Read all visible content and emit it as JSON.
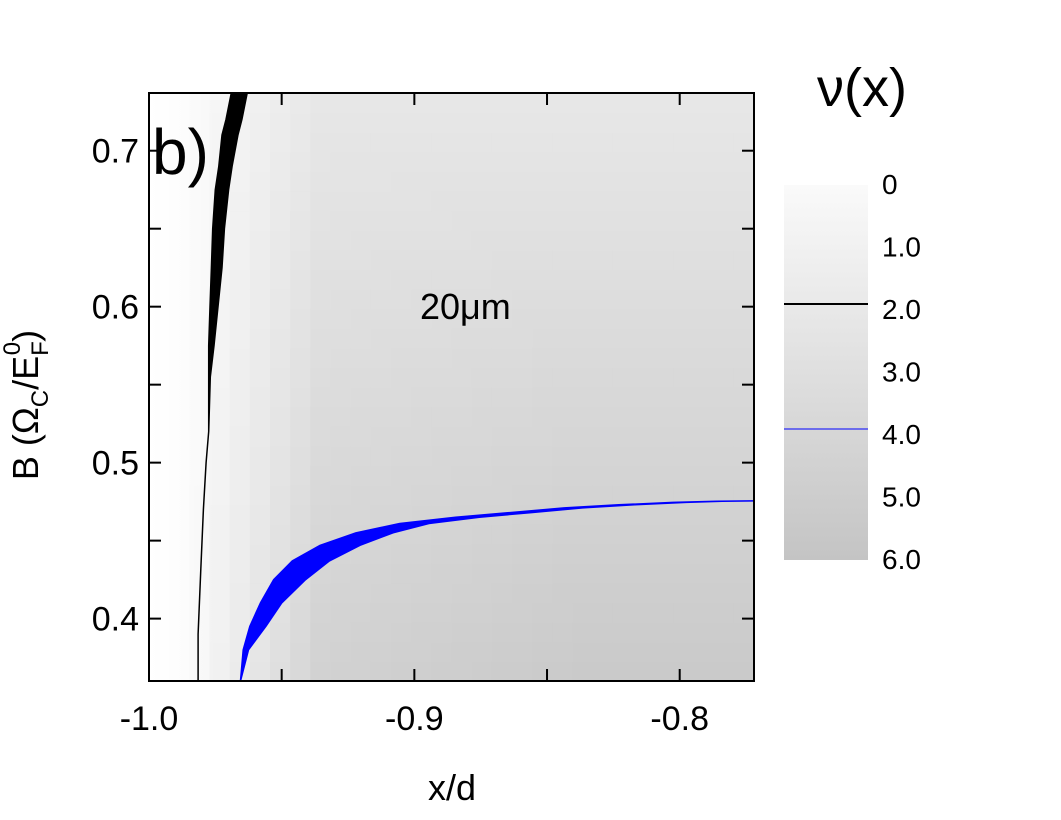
{
  "chart_data": {
    "type": "heatmap",
    "title": "",
    "panel_label": "b)",
    "annotation": "20μm",
    "xlabel": "x/d",
    "ylabel": {
      "prefix": "B (Ω",
      "sub1": "C",
      "middle": "/E",
      "sub2": "F",
      "sup2": "0",
      "suffix": ")"
    },
    "xlim": [
      -1.0,
      -0.772
    ],
    "ylim": [
      0.36,
      0.737
    ],
    "xticks": [
      {
        "value": -1.0,
        "label": "-1.0"
      },
      {
        "value": -0.95,
        "label": ""
      },
      {
        "value": -0.9,
        "label": "-0.9"
      },
      {
        "value": -0.85,
        "label": ""
      },
      {
        "value": -0.8,
        "label": "-0.8"
      }
    ],
    "yticks": [
      {
        "value": 0.4,
        "label": "0.4"
      },
      {
        "value": 0.45,
        "label": ""
      },
      {
        "value": 0.5,
        "label": "0.5"
      },
      {
        "value": 0.55,
        "label": ""
      },
      {
        "value": 0.6,
        "label": "0.6"
      },
      {
        "value": 0.65,
        "label": ""
      },
      {
        "value": 0.7,
        "label": "0.7"
      }
    ],
    "colorbar": {
      "title": "ν(x)",
      "range": [
        0,
        6
      ],
      "ticks": [
        "0",
        "1.0",
        "2.0",
        "3.0",
        "4.0",
        "5.0",
        "6.0"
      ],
      "low_color": "#fafafa",
      "high_color": "#c4c4c4",
      "contours": [
        {
          "level": 2.0,
          "color": "#000000"
        },
        {
          "level": 4.0,
          "color": "#0000ff"
        }
      ]
    },
    "series": [
      {
        "level": 2.0,
        "color": "#000000",
        "points": [
          [
            -0.9815,
            0.36
          ],
          [
            -0.9815,
            0.39
          ],
          [
            -0.9805,
            0.43
          ],
          [
            -0.9795,
            0.47
          ],
          [
            -0.9785,
            0.5
          ],
          [
            -0.9775,
            0.52
          ],
          [
            -0.9772,
            0.555
          ],
          [
            -0.9765,
            0.575
          ],
          [
            -0.9755,
            0.6
          ],
          [
            -0.9745,
            0.625
          ],
          [
            -0.9738,
            0.65
          ],
          [
            -0.9725,
            0.675
          ],
          [
            -0.9712,
            0.69
          ],
          [
            -0.9695,
            0.71
          ],
          [
            -0.968,
            0.72
          ],
          [
            -0.966,
            0.737
          ]
        ],
        "width": [
          0.0,
          0.0,
          0.0,
          0.0,
          0.0,
          0.0,
          0.0003,
          0.001,
          0.0015,
          0.002,
          0.0022,
          0.0025,
          0.0025,
          0.003,
          0.003,
          0.003
        ]
      },
      {
        "level": 4.0,
        "color": "#0000ff",
        "points": [
          [
            -0.9655,
            0.36
          ],
          [
            -0.9635,
            0.38
          ],
          [
            -0.959,
            0.395
          ],
          [
            -0.954,
            0.41
          ],
          [
            -0.947,
            0.425
          ],
          [
            -0.939,
            0.437
          ],
          [
            -0.928,
            0.447
          ],
          [
            -0.915,
            0.455
          ],
          [
            -0.9,
            0.461
          ],
          [
            -0.88,
            0.465
          ],
          [
            -0.86,
            0.468
          ],
          [
            -0.84,
            0.471
          ],
          [
            -0.82,
            0.473
          ],
          [
            -0.8,
            0.4745
          ],
          [
            -0.785,
            0.4752
          ],
          [
            -0.772,
            0.4755
          ]
        ],
        "width": [
          0.0,
          0.001,
          0.003,
          0.004,
          0.006,
          0.007,
          0.0075,
          0.007,
          0.0055,
          0.0045,
          0.004,
          0.0035,
          0.003,
          0.0025,
          0.001,
          0.0005
        ]
      }
    ]
  }
}
